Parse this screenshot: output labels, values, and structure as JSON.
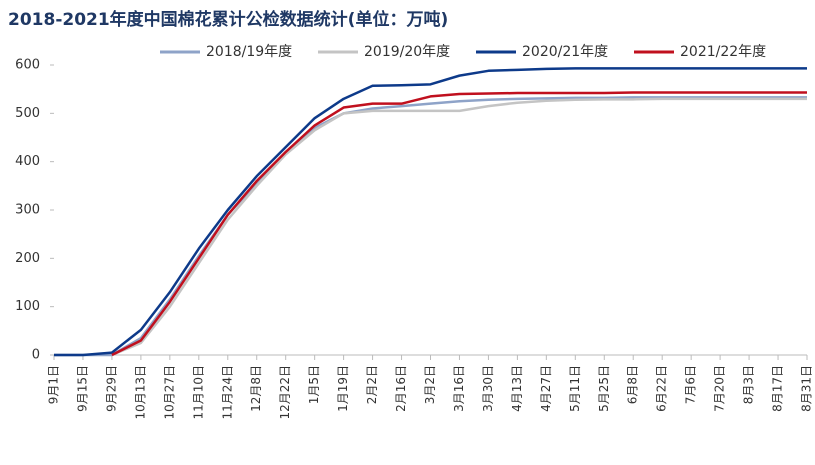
{
  "chart_data": {
    "type": "line",
    "title": "2018-2021年度中国棉花累计公检数据统计(单位：万吨)",
    "categories": [
      "9月1日",
      "9月15日",
      "9月29日",
      "10月13日",
      "10月27日",
      "11月10日",
      "11月24日",
      "12月8日",
      "12月22日",
      "1月5日",
      "1月19日",
      "2月2日",
      "2月16日",
      "3月2日",
      "3月16日",
      "3月30日",
      "4月13日",
      "4月27日",
      "5月11日",
      "5月25日",
      "6月8日",
      "6月22日",
      "7月6日",
      "7月20日",
      "8月3日",
      "8月17日",
      "8月31日"
    ],
    "series": [
      {
        "name": "2018/19年度",
        "color": "#8ea3c8",
        "values": [
          0,
          0,
          0,
          35,
          115,
          205,
          290,
          355,
          420,
          470,
          500,
          510,
          515,
          520,
          525,
          528,
          530,
          531,
          532,
          532,
          533,
          533,
          533,
          533,
          533,
          533,
          533
        ]
      },
      {
        "name": "2019/20年度",
        "color": "#c4c4c4",
        "values": [
          null,
          null,
          0,
          25,
          100,
          190,
          280,
          350,
          415,
          465,
          500,
          505,
          505,
          505,
          505,
          515,
          522,
          526,
          528,
          529,
          529,
          530,
          530,
          530,
          530,
          530,
          530
        ]
      },
      {
        "name": "2020/21年度",
        "color": "#0d3a8a",
        "values": [
          0,
          0,
          5,
          52,
          130,
          220,
          300,
          370,
          430,
          490,
          530,
          557,
          558,
          560,
          578,
          588,
          590,
          592,
          593,
          593,
          593,
          593,
          593,
          593,
          593,
          593,
          593
        ]
      },
      {
        "name": "2021/22年度",
        "color": "#c0101e",
        "values": [
          null,
          null,
          0,
          30,
          110,
          200,
          290,
          360,
          420,
          475,
          512,
          520,
          520,
          535,
          540,
          541,
          542,
          542,
          542,
          542,
          543,
          543,
          543,
          543,
          543,
          543,
          543
        ]
      }
    ],
    "ylim": [
      0,
      600
    ],
    "yticks": [
      0,
      100,
      200,
      300,
      400,
      500,
      600
    ],
    "grid": false,
    "legend": "top"
  }
}
